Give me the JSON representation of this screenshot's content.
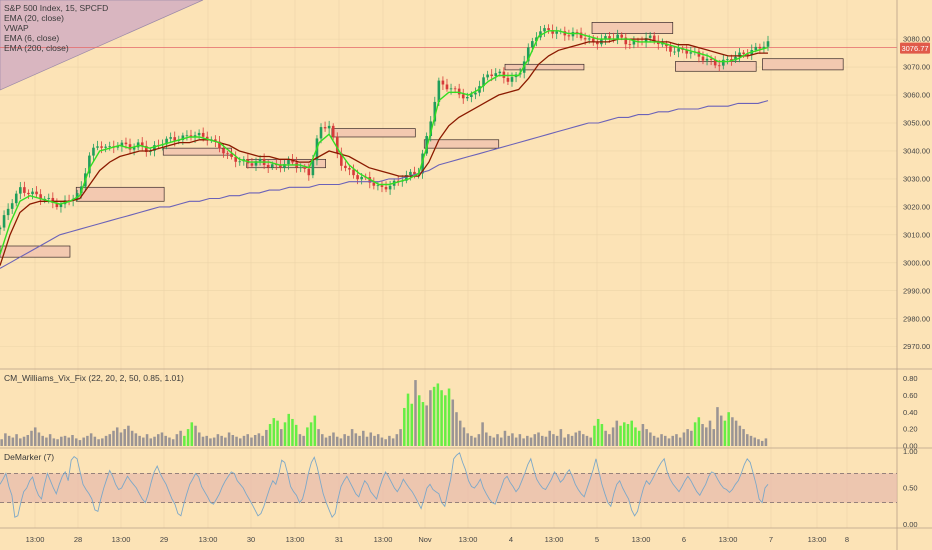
{
  "legend": {
    "symbol": "S&P 500 Index, 15, SPCFD",
    "indicators": [
      "EMA (20, close)",
      "VWAP",
      "EMA (6, close)",
      "EMA (200, close)"
    ]
  },
  "price_badge": "3076.77",
  "vix_label": "CM_Williams_Vix_Fix (22, 20, 2, 50, 0.85, 1.01)",
  "demarker_label": "DeMarker (7)",
  "colors": {
    "background": "#fce3b6",
    "ema6": "#33dd22",
    "ema20": "#8b1a00",
    "ema200": "#6b62b8",
    "candle_up": "#1f9e5a",
    "candle_down": "#d63a3a",
    "badge": "#e05a4a",
    "vix_gray": "#9a9494",
    "vix_green": "#66ee44",
    "demarker_line": "#7da8c8",
    "demarker_band": "#e7b9ad"
  },
  "chart_data": [
    {
      "type": "candlestick",
      "title": "S&P 500 Index, 15, SPCFD",
      "ylim": [
        2962,
        3094
      ],
      "y_ticks": [
        "3080.00",
        "3070.00",
        "3060.00",
        "3050.00",
        "3040.00",
        "3030.00",
        "3020.00",
        "3010.00",
        "3000.00",
        "2990.00",
        "2980.00",
        "2970.00"
      ],
      "x_ticks": [
        "13:00",
        "28",
        "13:00",
        "29",
        "13:00",
        "30",
        "13:00",
        "31",
        "13:00",
        "Nov",
        "13:00",
        "4",
        "13:00",
        "5",
        "13:00",
        "6",
        "13:00",
        "7",
        "13:00",
        "8"
      ],
      "close_path": [
        3012,
        3021,
        3027,
        3025,
        3023,
        3022,
        3021,
        3023,
        3024,
        3039,
        3043,
        3041,
        3042,
        3041,
        3043,
        3040,
        3042,
        3044,
        3045,
        3046,
        3045,
        3044,
        3042,
        3038,
        3036,
        3035,
        3037,
        3035,
        3034,
        3036,
        3035,
        3032,
        3047,
        3049,
        3037,
        3033,
        3030,
        3029,
        3027,
        3028,
        3029,
        3031,
        3033,
        3049,
        3064,
        3062,
        3061,
        3059,
        3063,
        3067,
        3068,
        3066,
        3067,
        3076,
        3083,
        3084,
        3082,
        3081,
        3082,
        3080,
        3079,
        3080,
        3081,
        3079,
        3079,
        3080,
        3079,
        3077,
        3076,
        3075,
        3074,
        3073,
        3071,
        3072,
        3074,
        3076,
        3077,
        3078
      ],
      "ema6": [
        3003,
        3014,
        3022,
        3024,
        3023,
        3022,
        3021,
        3022,
        3024,
        3034,
        3040,
        3041,
        3042,
        3041,
        3042,
        3041,
        3042,
        3043,
        3044,
        3045,
        3045,
        3044,
        3043,
        3040,
        3037,
        3036,
        3036,
        3036,
        3035,
        3035,
        3035,
        3034,
        3043,
        3046,
        3040,
        3035,
        3032,
        3030,
        3028,
        3028,
        3029,
        3030,
        3032,
        3044,
        3058,
        3061,
        3061,
        3060,
        3062,
        3065,
        3067,
        3067,
        3067,
        3073,
        3081,
        3083,
        3083,
        3082,
        3082,
        3081,
        3080,
        3080,
        3080,
        3080,
        3079,
        3079,
        3079,
        3078,
        3077,
        3076,
        3075,
        3074,
        3072,
        3072,
        3073,
        3075,
        3076,
        3077
      ],
      "ema20": [
        2999,
        3010,
        3018,
        3021,
        3022,
        3022,
        3022,
        3022,
        3023,
        3028,
        3033,
        3036,
        3038,
        3039,
        3040,
        3040,
        3041,
        3042,
        3043,
        3043,
        3044,
        3044,
        3043,
        3042,
        3040,
        3039,
        3038,
        3038,
        3037,
        3037,
        3036,
        3036,
        3038,
        3040,
        3039,
        3038,
        3036,
        3034,
        3033,
        3032,
        3031,
        3031,
        3031,
        3036,
        3044,
        3049,
        3052,
        3054,
        3056,
        3058,
        3060,
        3061,
        3062,
        3066,
        3071,
        3074,
        3076,
        3077,
        3078,
        3079,
        3079,
        3079,
        3080,
        3080,
        3080,
        3080,
        3079,
        3079,
        3078,
        3078,
        3077,
        3076,
        3075,
        3074,
        3074,
        3074,
        3075,
        3075
      ],
      "ema200": [
        2998,
        3000,
        3002,
        3004,
        3006,
        3008,
        3010,
        3011,
        3012,
        3013,
        3014,
        3015,
        3016,
        3017,
        3018,
        3019,
        3020,
        3020,
        3021,
        3022,
        3022,
        3023,
        3023,
        3024,
        3024,
        3025,
        3025,
        3026,
        3026,
        3027,
        3027,
        3027,
        3028,
        3028,
        3028,
        3029,
        3029,
        3029,
        3029,
        3030,
        3030,
        3031,
        3032,
        3033,
        3035,
        3036,
        3037,
        3038,
        3039,
        3040,
        3041,
        3042,
        3043,
        3044,
        3045,
        3046,
        3047,
        3048,
        3049,
        3050,
        3050,
        3051,
        3052,
        3052,
        3053,
        3053,
        3054,
        3054,
        3055,
        3055,
        3055,
        3056,
        3056,
        3056,
        3057,
        3057,
        3057,
        3058
      ],
      "vwap_level": 3077,
      "zones": [
        {
          "x0": 0,
          "x1": 7.8,
          "y0": 3002,
          "y1": 3006
        },
        {
          "x0": 8.5,
          "x1": 18.3,
          "y0": 3022,
          "y1": 3027
        },
        {
          "x0": 18.2,
          "x1": 25.8,
          "y0": 3038.5,
          "y1": 3041
        },
        {
          "x0": 27.5,
          "x1": 36.3,
          "y0": 3034,
          "y1": 3037
        },
        {
          "x0": 37,
          "x1": 46.3,
          "y0": 3045,
          "y1": 3048
        },
        {
          "x0": 47.3,
          "x1": 55.6,
          "y0": 3041,
          "y1": 3044
        },
        {
          "x0": 56.3,
          "x1": 65.1,
          "y0": 3069,
          "y1": 3071
        },
        {
          "x0": 66,
          "x1": 75,
          "y0": 3082,
          "y1": 3086
        },
        {
          "x0": 75.3,
          "x1": 84.3,
          "y0": 3068.5,
          "y1": 3072
        },
        {
          "x0": 85,
          "x1": 94,
          "y0": 3069,
          "y1": 3073
        }
      ]
    },
    {
      "type": "bar",
      "title": "CM_Williams_Vix_Fix (22, 20, 2, 50, 0.85, 1.01)",
      "ylim": [
        0,
        0.84
      ],
      "y_ticks": [
        "0.80",
        "0.60",
        "0.40",
        "0.20",
        "0.00"
      ],
      "values": [
        0.08,
        0.15,
        0.12,
        0.1,
        0.14,
        0.09,
        0.11,
        0.13,
        0.18,
        0.22,
        0.16,
        0.12,
        0.1,
        0.14,
        0.09,
        0.08,
        0.11,
        0.12,
        0.1,
        0.13,
        0.09,
        0.07,
        0.1,
        0.12,
        0.15,
        0.11,
        0.08,
        0.09,
        0.12,
        0.14,
        0.18,
        0.22,
        0.16,
        0.2,
        0.24,
        0.18,
        0.15,
        0.12,
        0.1,
        0.14,
        0.09,
        0.11,
        0.14,
        0.16,
        0.12,
        0.1,
        0.08,
        0.14,
        0.18,
        0.12,
        0.2,
        0.28,
        0.24,
        0.16,
        0.11,
        0.12,
        0.09,
        0.1,
        0.14,
        0.12,
        0.1,
        0.16,
        0.13,
        0.11,
        0.09,
        0.12,
        0.14,
        0.1,
        0.13,
        0.15,
        0.12,
        0.19,
        0.26,
        0.33,
        0.3,
        0.2,
        0.28,
        0.38,
        0.32,
        0.25,
        0.14,
        0.12,
        0.22,
        0.28,
        0.36,
        0.2,
        0.14,
        0.1,
        0.12,
        0.16,
        0.11,
        0.09,
        0.14,
        0.12,
        0.2,
        0.15,
        0.12,
        0.18,
        0.11,
        0.16,
        0.12,
        0.14,
        0.1,
        0.08,
        0.12,
        0.09,
        0.14,
        0.2,
        0.45,
        0.62,
        0.5,
        0.78,
        0.6,
        0.52,
        0.48,
        0.66,
        0.7,
        0.74,
        0.66,
        0.6,
        0.68,
        0.55,
        0.4,
        0.3,
        0.22,
        0.15,
        0.12,
        0.1,
        0.14,
        0.28,
        0.16,
        0.12,
        0.1,
        0.14,
        0.1,
        0.18,
        0.12,
        0.15,
        0.1,
        0.14,
        0.09,
        0.12,
        0.1,
        0.14,
        0.16,
        0.12,
        0.11,
        0.18,
        0.14,
        0.12,
        0.2,
        0.1,
        0.14,
        0.12,
        0.16,
        0.18,
        0.14,
        0.12,
        0.1,
        0.24,
        0.32,
        0.26,
        0.18,
        0.14,
        0.22,
        0.3,
        0.24,
        0.28,
        0.26,
        0.3,
        0.22,
        0.18,
        0.26,
        0.2,
        0.16,
        0.12,
        0.1,
        0.14,
        0.12,
        0.09,
        0.12,
        0.14,
        0.1,
        0.16,
        0.2,
        0.18,
        0.28,
        0.34,
        0.26,
        0.22,
        0.3,
        0.2,
        0.46,
        0.36,
        0.3,
        0.4,
        0.34,
        0.3,
        0.24,
        0.2,
        0.14,
        0.12,
        0.1,
        0.08,
        0.06,
        0.09
      ],
      "highlighted_indices": [
        49,
        50,
        51,
        72,
        73,
        74,
        76,
        77,
        78,
        79,
        82,
        83,
        84,
        108,
        109,
        110,
        112,
        113,
        116,
        117,
        118,
        119,
        120,
        159,
        160,
        161,
        166,
        167,
        168,
        169,
        170,
        171,
        186,
        187,
        194,
        195
      ]
    },
    {
      "type": "line",
      "title": "DeMarker (7)",
      "ylim": [
        -0.02,
        1.02
      ],
      "y_ticks": [
        "1.00",
        "0.50",
        "0.00"
      ],
      "bands": [
        0.3,
        0.7
      ],
      "values": [
        0.55,
        0.62,
        0.7,
        0.52,
        0.4,
        0.1,
        0.12,
        0.3,
        0.45,
        0.5,
        0.6,
        0.65,
        0.5,
        0.4,
        0.35,
        0.55,
        0.7,
        0.6,
        0.5,
        0.42,
        0.55,
        0.66,
        0.72,
        0.6,
        0.88,
        0.93,
        0.9,
        0.72,
        0.55,
        0.48,
        0.42,
        0.35,
        0.2,
        0.18,
        0.35,
        0.5,
        0.62,
        0.74,
        0.66,
        0.55,
        0.48,
        0.5,
        0.58,
        0.66,
        0.6,
        0.55,
        0.5,
        0.42,
        0.35,
        0.3,
        0.42,
        0.58,
        0.72,
        0.8,
        0.7,
        0.62,
        0.55,
        0.45,
        0.35,
        0.28,
        0.15,
        0.12,
        0.28,
        0.42,
        0.55,
        0.62,
        0.7,
        0.65,
        0.52,
        0.45,
        0.38,
        0.3,
        0.28,
        0.35,
        0.42,
        0.52,
        0.6,
        0.66,
        0.72,
        0.7,
        0.6,
        0.55,
        0.5,
        0.42,
        0.35,
        0.28,
        0.2,
        0.12,
        0.15,
        0.25,
        0.38,
        0.5,
        0.6,
        0.55,
        0.68,
        0.88,
        0.85,
        0.7,
        0.52,
        0.45,
        0.4,
        0.3,
        0.35,
        0.5,
        0.7,
        0.85,
        0.92,
        0.78,
        0.6,
        0.42,
        0.3,
        0.2,
        0.1,
        0.15,
        0.35,
        0.52,
        0.6,
        0.66,
        0.58,
        0.5,
        0.42,
        0.38,
        0.5,
        0.6,
        0.55,
        0.45,
        0.4,
        0.35,
        0.5,
        0.62,
        0.72,
        0.66,
        0.58,
        0.5,
        0.45,
        0.52,
        0.62,
        0.56,
        0.5,
        0.45,
        0.38,
        0.3,
        0.22,
        0.35,
        0.5,
        0.55,
        0.48,
        0.45,
        0.42,
        0.3,
        0.25,
        0.45,
        0.62,
        0.9,
        0.95,
        0.98,
        0.85,
        0.75,
        0.6,
        0.52,
        0.5,
        0.55,
        0.62,
        0.5,
        0.42,
        0.35,
        0.3,
        0.28,
        0.4,
        0.5,
        0.62,
        0.66,
        0.58,
        0.52,
        0.45,
        0.5,
        0.6,
        0.7,
        0.82,
        0.9,
        0.75,
        0.62,
        0.55,
        0.5,
        0.48,
        0.55,
        0.62,
        0.72,
        0.66,
        0.58,
        0.62,
        0.7,
        0.75,
        0.66,
        0.55,
        0.48,
        0.42,
        0.38,
        0.5,
        0.62,
        0.75,
        0.9,
        0.72,
        0.55,
        0.42,
        0.3,
        0.25,
        0.42,
        0.55,
        0.6,
        0.5,
        0.42,
        0.35,
        0.2,
        0.12,
        0.18,
        0.35,
        0.5,
        0.6,
        0.55,
        0.62,
        0.7,
        0.78,
        0.85,
        0.9,
        0.72,
        0.62,
        0.55,
        0.5,
        0.45,
        0.52,
        0.6,
        0.66,
        0.6,
        0.52,
        0.45,
        0.4,
        0.48,
        0.55,
        0.66,
        0.72,
        0.7,
        0.62,
        0.55,
        0.5,
        0.48,
        0.44,
        0.48,
        0.55,
        0.6,
        0.7,
        0.82,
        0.9,
        0.85,
        0.7,
        0.55,
        0.35,
        0.3,
        0.5,
        0.55
      ]
    }
  ]
}
